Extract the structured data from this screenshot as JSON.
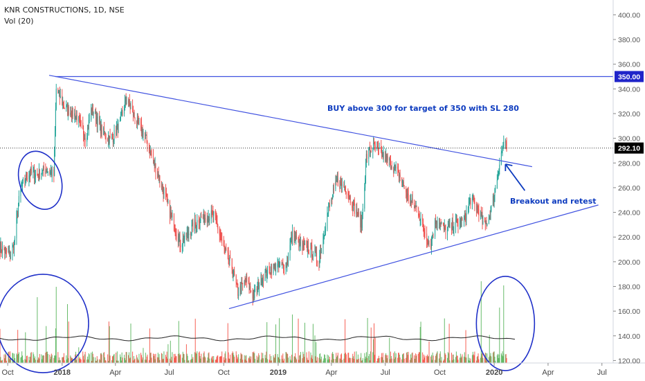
{
  "header": {
    "title": "KNR CONSTRUCTIONS, 1D, NSE",
    "volume_label": "Vol (20)"
  },
  "annotations": {
    "buy_note": "BUY above 300 for target of 350 with SL 280",
    "breakout_note": "Breakout and retest"
  },
  "price_tags": {
    "resistance": "350.00",
    "last": "292.10"
  },
  "colors": {
    "up": "#26a69a",
    "down": "#ef5350",
    "vol_up": "#4caf50",
    "vol_down": "#f44336",
    "trendline": "#3f51e0",
    "annotation": "#0d3bbf",
    "circle": "#1e2fc8",
    "tag_bg": "#000000",
    "tag_res_bg": "#1f24c9",
    "grid": "#e0e3eb"
  },
  "chart_data": {
    "type": "candlestick",
    "title": "KNR CONSTRUCTIONS, 1D, NSE",
    "y_axis": {
      "ticks": [
        120,
        140,
        160,
        180,
        200,
        220,
        240,
        260,
        280,
        300,
        320,
        340,
        360,
        380,
        400
      ],
      "ylim": [
        118,
        412
      ],
      "side": "right"
    },
    "x_axis": {
      "ticks": [
        "Oct",
        "2018",
        "Apr",
        "Jul",
        "Oct",
        "2019",
        "Apr",
        "Jul",
        "Oct",
        "2020",
        "Apr",
        "Jul"
      ],
      "start": "2017-09-18",
      "end": "2020-07-20"
    },
    "price_series": [
      [
        "2017-09-18",
        212
      ],
      [
        "2017-10-05",
        205
      ],
      [
        "2017-10-12",
        215
      ],
      [
        "2017-10-22",
        258
      ],
      [
        "2017-11-05",
        272
      ],
      [
        "2017-11-20",
        270
      ],
      [
        "2017-12-05",
        275
      ],
      [
        "2017-12-18",
        270
      ],
      [
        "2017-12-22",
        340
      ],
      [
        "2018-01-05",
        325
      ],
      [
        "2018-01-25",
        318
      ],
      [
        "2018-02-10",
        300
      ],
      [
        "2018-02-20",
        325
      ],
      [
        "2018-03-10",
        305
      ],
      [
        "2018-03-25",
        298
      ],
      [
        "2018-04-08",
        312
      ],
      [
        "2018-04-20",
        333
      ],
      [
        "2018-05-05",
        315
      ],
      [
        "2018-05-20",
        303
      ],
      [
        "2018-06-05",
        280
      ],
      [
        "2018-06-20",
        260
      ],
      [
        "2018-07-05",
        235
      ],
      [
        "2018-07-20",
        215
      ],
      [
        "2018-08-01",
        222
      ],
      [
        "2018-08-20",
        235
      ],
      [
        "2018-09-15",
        238
      ],
      [
        "2018-09-30",
        212
      ],
      [
        "2018-10-15",
        195
      ],
      [
        "2018-10-25",
        175
      ],
      [
        "2018-11-08",
        185
      ],
      [
        "2018-11-20",
        172
      ],
      [
        "2018-12-05",
        188
      ],
      [
        "2018-12-20",
        195
      ],
      [
        "2019-01-15",
        198
      ],
      [
        "2019-01-25",
        222
      ],
      [
        "2019-02-10",
        212
      ],
      [
        "2019-02-25",
        210
      ],
      [
        "2019-03-10",
        200
      ],
      [
        "2019-03-25",
        238
      ],
      [
        "2019-04-10",
        265
      ],
      [
        "2019-04-25",
        260
      ],
      [
        "2019-05-10",
        243
      ],
      [
        "2019-05-22",
        230
      ],
      [
        "2019-05-30",
        285
      ],
      [
        "2019-06-10",
        293
      ],
      [
        "2019-06-25",
        287
      ],
      [
        "2019-07-10",
        280
      ],
      [
        "2019-07-25",
        270
      ],
      [
        "2019-08-10",
        250
      ],
      [
        "2019-08-25",
        242
      ],
      [
        "2019-09-05",
        225
      ],
      [
        "2019-09-15",
        213
      ],
      [
        "2019-09-25",
        235
      ],
      [
        "2019-10-10",
        225
      ],
      [
        "2019-10-25",
        230
      ],
      [
        "2019-11-10",
        232
      ],
      [
        "2019-11-22",
        250
      ],
      [
        "2019-12-05",
        243
      ],
      [
        "2019-12-15",
        228
      ],
      [
        "2019-12-25",
        238
      ],
      [
        "2020-01-05",
        265
      ],
      [
        "2020-01-12",
        285
      ],
      [
        "2020-01-17",
        296
      ],
      [
        "2020-01-22",
        292
      ]
    ],
    "volume_series": {
      "ma_period": 20,
      "ma_level": 138
    },
    "trendlines": [
      {
        "name": "resistance",
        "from": [
          "2017-12-10",
          351
        ],
        "to": [
          "2020-03-05",
          277
        ]
      },
      {
        "name": "support",
        "from": [
          "2018-10-10",
          162
        ],
        "to": [
          "2020-06-25",
          246
        ]
      },
      {
        "name": "horizontal",
        "from": [
          "2017-12-20",
          350
        ],
        "to": [
          "2020-07-20",
          350
        ]
      }
    ],
    "last_price": 292.1,
    "resistance_level": 350.0
  }
}
